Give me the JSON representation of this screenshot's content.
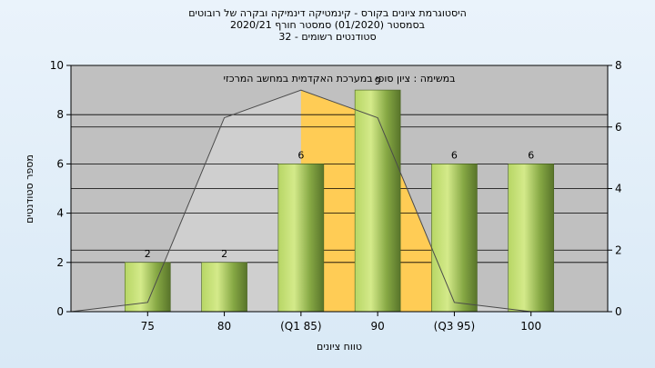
{
  "header": {
    "title_line1": "היסטוגרמת ציונים בקורס - קינמטיקה דינמיקה ובקרה של רובוטים",
    "title_line2": "בסמסטר  (01/2020)  סמסטר חורף  2020/21",
    "title_line3": "סטודנטים רשומים - 32"
  },
  "colors": {
    "plot_bg": "#c0c0c0",
    "bar_light": "#c8e27a",
    "bar_dark": "#5f7c2d",
    "band_fill": "#ffcc55",
    "grey_area": "#d0d0d0"
  },
  "chart_data": {
    "type": "bar",
    "title": "",
    "annotation": "במשימה : ציון סופי במערכת האקדמית במחשב המרכזי",
    "xlabel": "טווח ציונים",
    "ylabel": "מספר סטודנטים",
    "categories": [
      "75",
      "80",
      "(Q1 85)",
      "90",
      "(Q3 95)",
      "100"
    ],
    "values": [
      2,
      2,
      6,
      9,
      6,
      6
    ],
    "data_labels": [
      "2",
      "2",
      "6",
      "9",
      "6",
      "6"
    ],
    "ylim": [
      0,
      10
    ],
    "y_ticks": [
      "0",
      "2",
      "4",
      "6",
      "8",
      "10"
    ],
    "y2lim": [
      0,
      8
    ],
    "y2_ticks": [
      "0",
      "2",
      "4",
      "6",
      "8"
    ],
    "distribution_curve": [
      0,
      0.3,
      6.3,
      7.2,
      6.3,
      0.3,
      0
    ],
    "iqr_band": [
      "(Q1 85)",
      "(Q3 95)"
    ],
    "grid": true,
    "legend": "none"
  }
}
